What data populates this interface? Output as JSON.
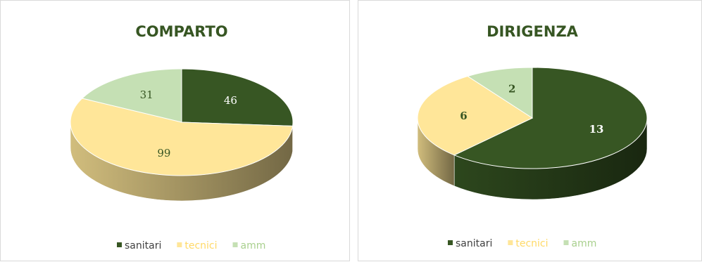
{
  "chart_data": [
    {
      "type": "pie",
      "title": "COMPARTO",
      "categories": [
        "sanitari",
        "tecnici",
        "amm"
      ],
      "values": [
        46,
        99,
        31
      ],
      "colors": [
        "#375623",
        "#ffe699",
        "#c5e0b4"
      ],
      "label_colors": [
        "#ffffff",
        "#375623",
        "#375623"
      ],
      "legend_position": "bottom",
      "style": "3d"
    },
    {
      "type": "pie",
      "title": "DIRIGENZA",
      "categories": [
        "sanitari",
        "tecnici",
        "amm"
      ],
      "values": [
        13,
        6,
        2
      ],
      "colors": [
        "#375623",
        "#ffe699",
        "#c5e0b4"
      ],
      "label_colors": [
        "#ffffff",
        "#375623",
        "#375623"
      ],
      "legend_position": "bottom",
      "style": "3d"
    }
  ]
}
